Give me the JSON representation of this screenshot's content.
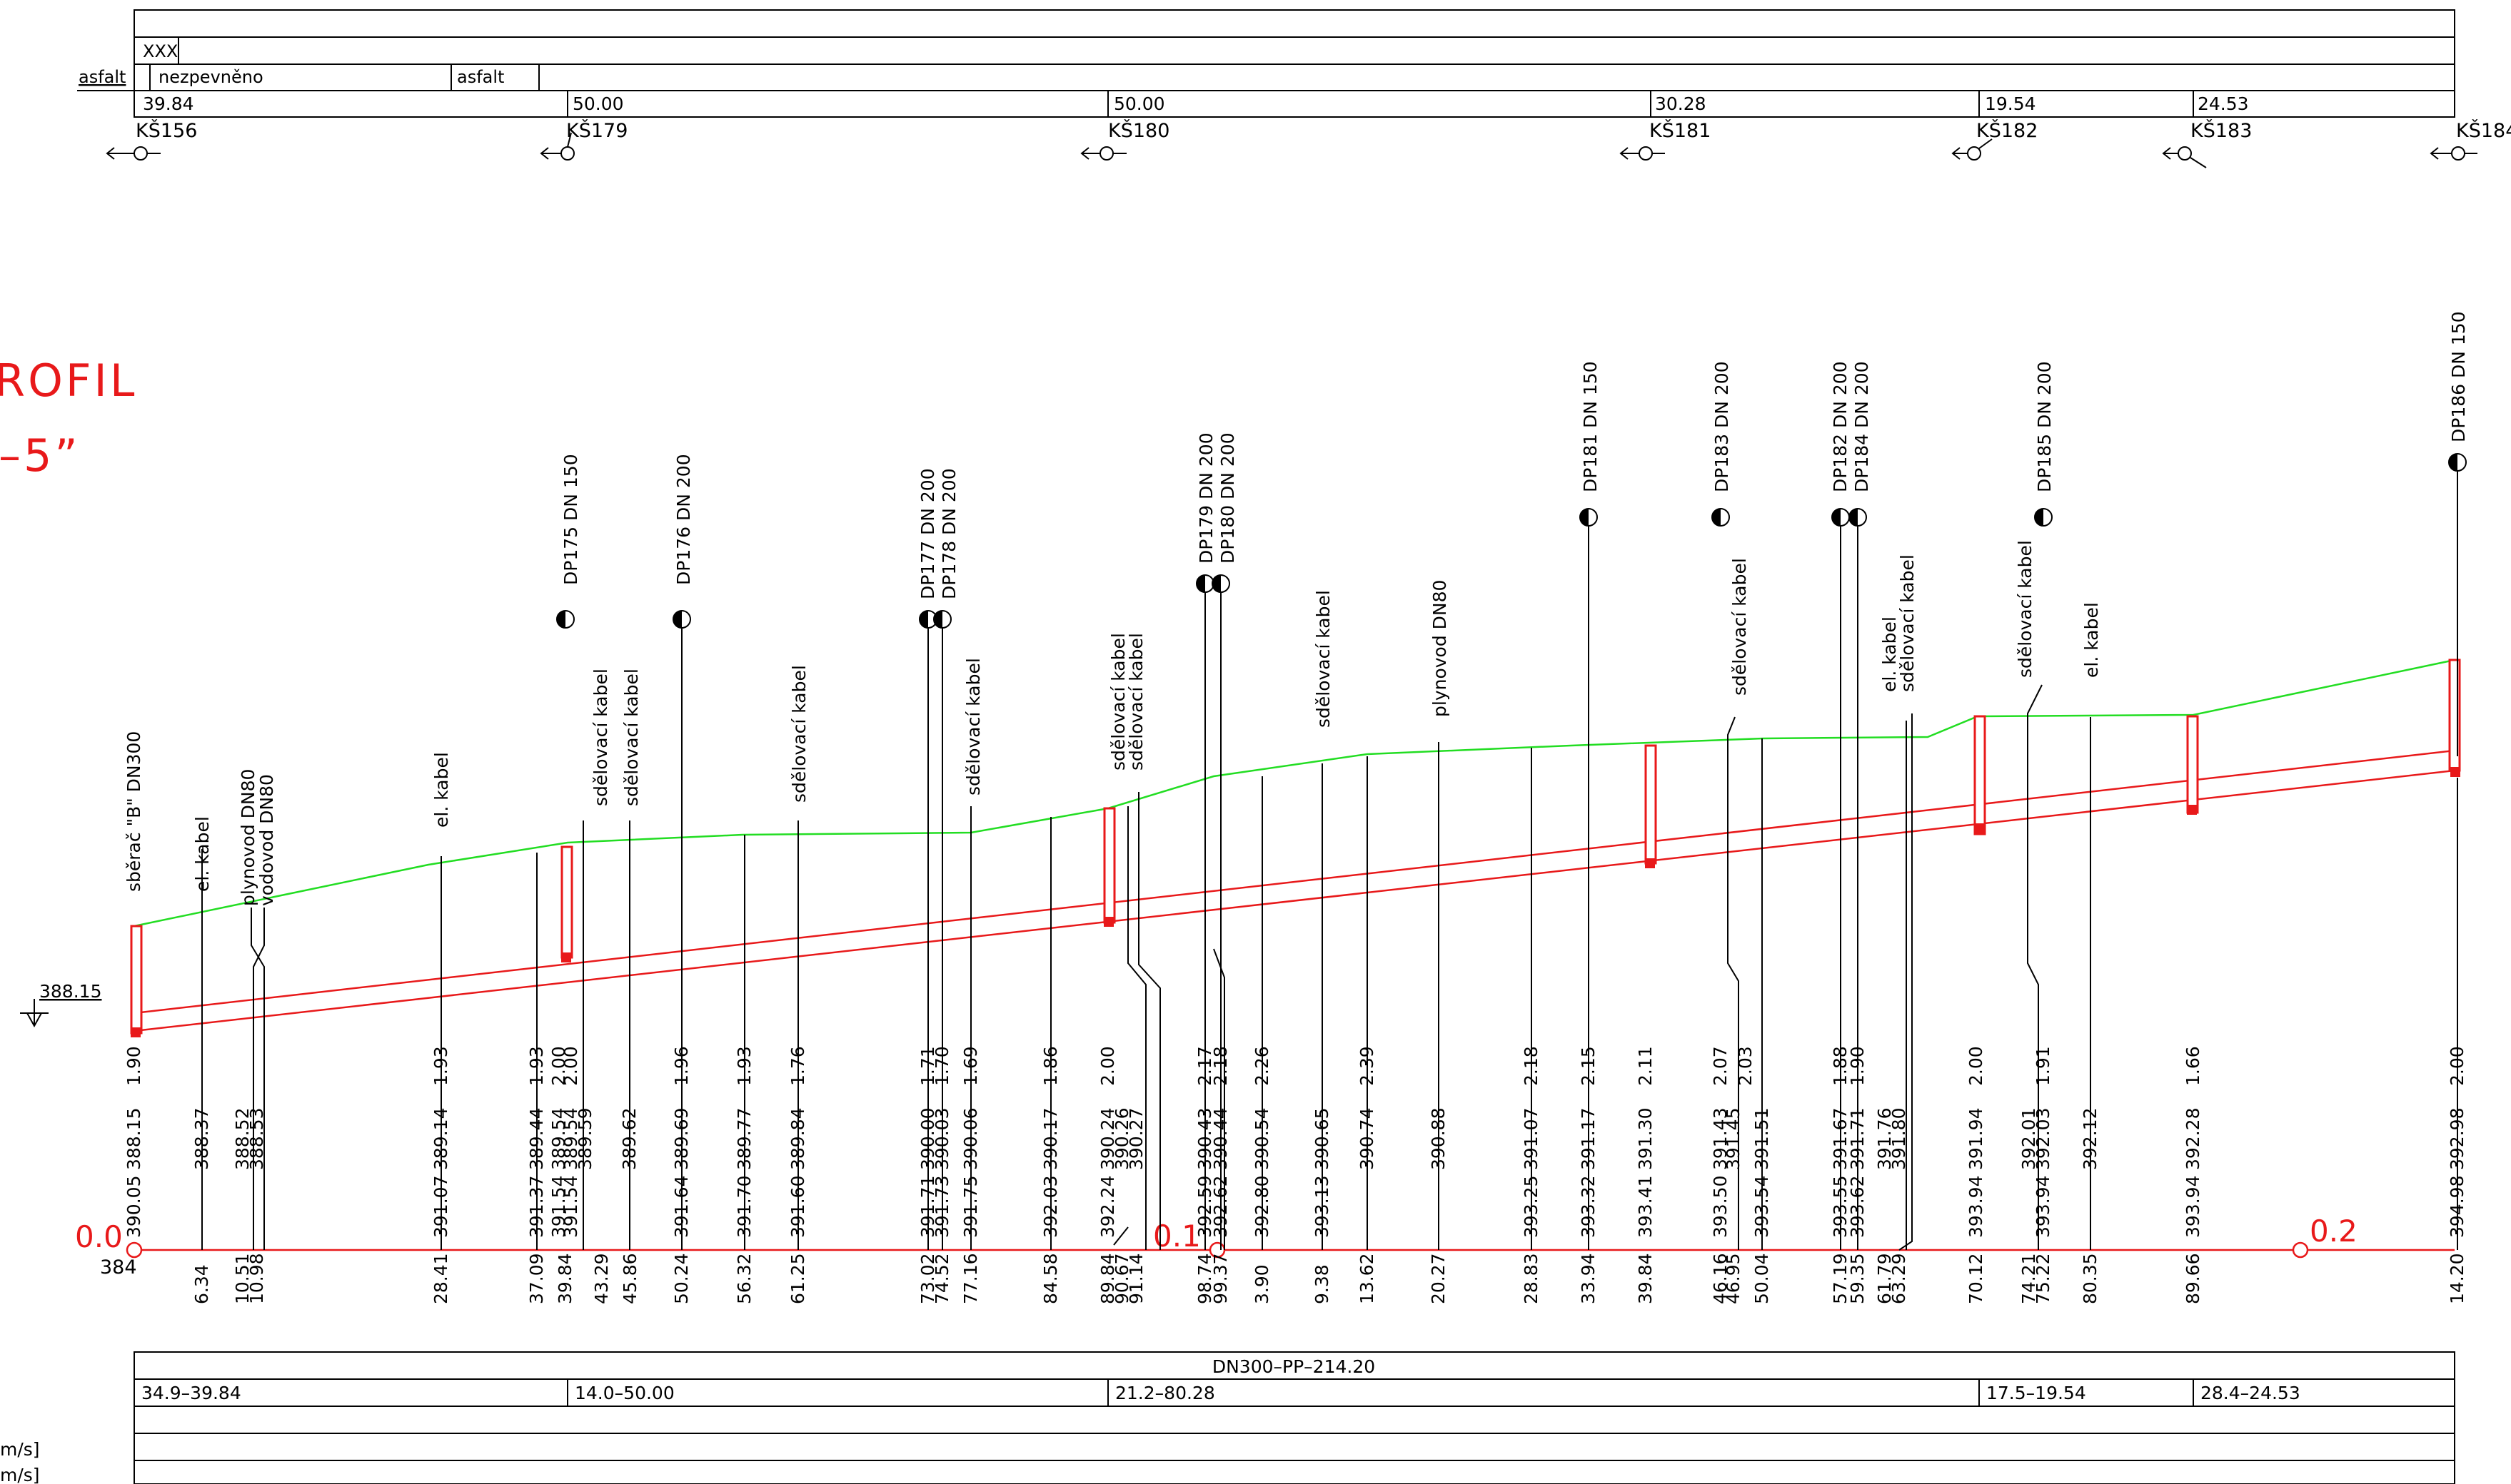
{
  "title_fragments": {
    "line1": "ROFIL",
    "line2": "–5”"
  },
  "top_table": {
    "surface_label": "asfalt",
    "cells_row1": [
      "XXX"
    ],
    "cells_row2": [
      "nezpevněno",
      "asfalt"
    ],
    "lengths": [
      "39.84",
      "50.00",
      "50.00",
      "30.28",
      "19.54",
      "24.53"
    ]
  },
  "manholes": [
    "KŠ156",
    "KŠ179",
    "KŠ180",
    "KŠ181",
    "KŠ182",
    "KŠ183",
    "KŠ184"
  ],
  "datum": {
    "level_label": "388.15",
    "base_value": "384"
  },
  "stationing": [
    "0.0",
    "0.1",
    "0.2"
  ],
  "crossings_top": [
    "DP175  DN  150",
    "DP176  DN  200",
    "DP177  DN  200",
    "DP178  DN  200",
    "DP179  DN  200",
    "DP180  DN  200",
    "DP181  DN  150",
    "DP183  DN  200",
    "DP182  DN  200",
    "DP184  DN  200",
    "DP185  DN  200",
    "DP186  DN  150"
  ],
  "crossings_mid": [
    "sběrač  \"B\"  DN300",
    "el.  kabel",
    "plynovod  DN80",
    "vodovod  DN80",
    "el.  kabel",
    "sdělovací  kabel",
    "sdělovací  kabel",
    "sdělovací  kabel",
    "sdělovací  kabel",
    "sdělovací  kabel",
    "sdělovací  kabel",
    "sdělovací  kabel",
    "plynovod  DN80",
    "sdělovací  kabel",
    "el.  kabel",
    "sdělovací  kabel",
    "sdělovací  kabel",
    "el.  kabel"
  ],
  "depths": [
    "1.90",
    "1.93",
    "1.93",
    "2.00",
    "2.00",
    "1.96",
    "1.93",
    "1.76",
    "1.71",
    "1.70",
    "1.69",
    "1.86",
    "2.00",
    "2.17",
    "2.18",
    "2.26",
    "2.39",
    "2.18",
    "2.15",
    "2.11",
    "2.07",
    "2.03",
    "1.88",
    "1.90",
    "2.00",
    "1.91",
    "1.66",
    "2.00"
  ],
  "invert_elevations": [
    "388.15",
    "388.37",
    "388.52",
    "388.53",
    "389.14",
    "389.44",
    "389.54",
    "389.54",
    "389.59",
    "389.62",
    "389.69",
    "389.77",
    "389.84",
    "390.00",
    "390.03",
    "390.06",
    "390.17",
    "390.24",
    "390.26",
    "390.27",
    "390.43",
    "390.44",
    "390.54",
    "390.65",
    "390.74",
    "390.88",
    "391.07",
    "391.17",
    "391.30",
    "391.43",
    "391.45",
    "391.51",
    "391.67",
    "391.71",
    "391.76",
    "391.80",
    "391.94",
    "392.01",
    "392.03",
    "392.12",
    "392.28",
    "392.98"
  ],
  "terrain_elevations": [
    "390.05",
    "391.07",
    "391.37",
    "391.54",
    "391.54",
    "391.64",
    "391.70",
    "391.60",
    "391.71",
    "391.73",
    "391.75",
    "392.03",
    "392.24",
    "392.59",
    "392.62",
    "392.80",
    "393.13",
    "393.25",
    "393.32",
    "393.41",
    "393.50",
    "393.54",
    "393.55",
    "393.62",
    "393.94",
    "393.94",
    "393.94",
    "394.98"
  ],
  "chainages": [
    "6.34",
    "10.51",
    "10.98",
    "28.41",
    "37.09",
    "39.84",
    "43.29",
    "45.86",
    "50.24",
    "56.32",
    "61.25",
    "73.02",
    "74.52",
    "77.16",
    "84.58",
    "89.84",
    "90.67",
    "91.14",
    "98.74",
    "99.37",
    "3.90",
    "9.38",
    "13.62",
    "20.27",
    "28.83",
    "33.94",
    "39.84",
    "46.16",
    "46.95",
    "50.04",
    "57.19",
    "59.35",
    "61.79",
    "63.29",
    "70.12",
    "74.21",
    "75.22",
    "80.35",
    "89.66",
    "14.20"
  ],
  "pipe_table": {
    "title": "DN300–PP–214.20",
    "segments": [
      "34.9–39.84",
      "14.0–50.00",
      "21.2–80.28",
      "17.5–19.54",
      "28.4–24.53"
    ],
    "units": [
      "m/s]",
      "m/s]"
    ]
  },
  "colors": {
    "line": "#000000",
    "pipe": "#e8191a",
    "terrain": "#22dd22",
    "title": "#e8191a"
  }
}
